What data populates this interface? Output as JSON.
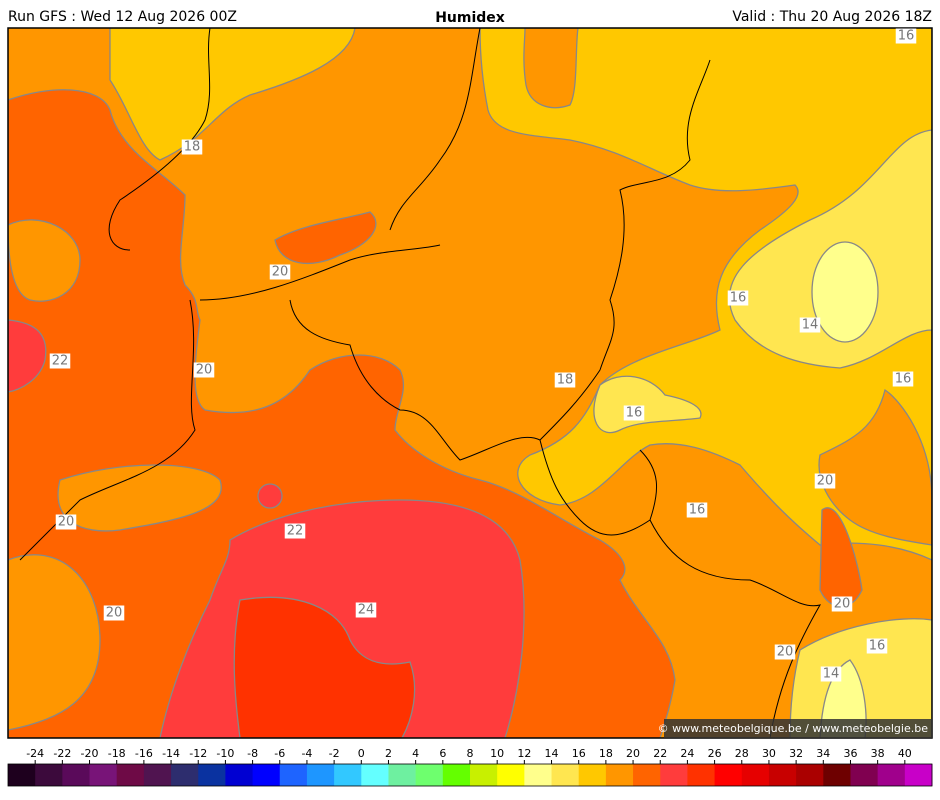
{
  "header": {
    "run": "Run GFS : Wed 12 Aug 2026 00Z",
    "title": "Humidex",
    "valid": "Valid : Thu 20 Aug 2026 18Z"
  },
  "contour_labels": [
    18,
    20,
    22,
    20,
    18,
    16,
    14,
    16,
    16,
    20,
    16,
    20,
    22,
    20,
    24,
    20,
    16,
    20,
    14,
    16
  ],
  "credit": "© www.meteobelgique.be / www.meteobelgie.be",
  "colorbar": {
    "ticks": [
      -24,
      -22,
      -20,
      -18,
      -16,
      -14,
      -12,
      -10,
      -8,
      -6,
      -4,
      -2,
      0,
      2,
      4,
      6,
      8,
      10,
      12,
      14,
      16,
      18,
      20,
      22,
      24,
      26,
      28,
      30,
      32,
      34,
      36,
      38,
      40
    ],
    "colors": [
      "#1e001e",
      "#3c0a3c",
      "#5a0a5a",
      "#781478",
      "#6e0a46",
      "#501450",
      "#2d2d6e",
      "#0a32a0",
      "#0000d2",
      "#0000ff",
      "#1e64ff",
      "#1e96ff",
      "#32c8ff",
      "#64ffff",
      "#6ef0a0",
      "#6eff6e",
      "#64ff00",
      "#c8f000",
      "#ffff00",
      "#ffff8c",
      "#ffe650",
      "#ffc800",
      "#ff9600",
      "#ff6400",
      "#ff3c3c",
      "#ff3200",
      "#ff0000",
      "#e60000",
      "#c80000",
      "#aa0000",
      "#6e0000",
      "#800050",
      "#a0008c",
      "#c800c8"
    ]
  }
}
